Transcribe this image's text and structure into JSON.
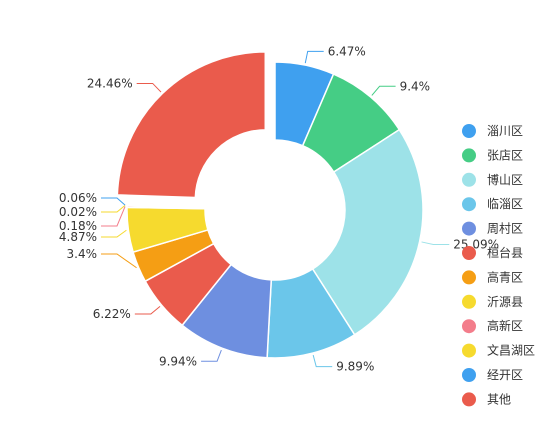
{
  "chart_data": {
    "type": "pie",
    "variant": "donut",
    "title": "",
    "legend_position": "right",
    "slices": [
      {
        "name": "淄川区",
        "value": 6.47,
        "label": "6.47%",
        "color": "#3fa0ef"
      },
      {
        "name": "张店区",
        "value": 9.4,
        "label": "9.4%",
        "color": "#45cd85"
      },
      {
        "name": "博山区",
        "value": 25.09,
        "label": "25.09%",
        "color": "#9de2e8"
      },
      {
        "name": "临淄区",
        "value": 9.89,
        "label": "9.89%",
        "color": "#6bc6ea"
      },
      {
        "name": "周村区",
        "value": 9.94,
        "label": "9.94%",
        "color": "#6e8fe0"
      },
      {
        "name": "桓台县",
        "value": 6.22,
        "label": "6.22%",
        "color": "#ea5b4c"
      },
      {
        "name": "高青区",
        "value": 3.4,
        "label": "3.4%",
        "color": "#f59e14"
      },
      {
        "name": "沂源县",
        "value": 4.87,
        "label": "4.87%",
        "color": "#f6da2e"
      },
      {
        "name": "高新区",
        "value": 0.18,
        "label": "0.18%",
        "color": "#f37d8b"
      },
      {
        "name": "文昌湖区",
        "value": 0.02,
        "label": "0.02%",
        "color": "#f6da2e"
      },
      {
        "name": "经开区",
        "value": 0.06,
        "label": "0.06%",
        "color": "#3fa0ef"
      },
      {
        "name": "其他",
        "value": 24.46,
        "label": "24.46%",
        "color": "#ea5b4c",
        "exploded": true
      }
    ]
  }
}
